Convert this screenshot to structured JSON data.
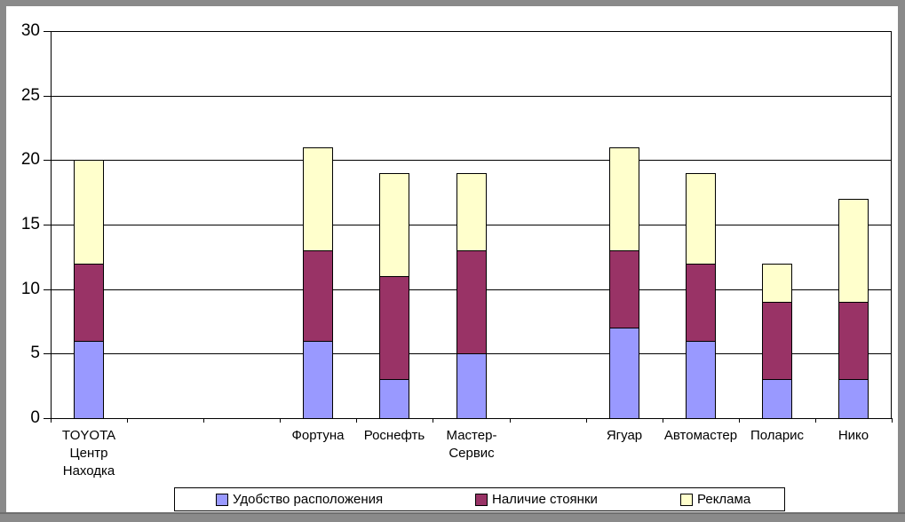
{
  "chart_data": {
    "type": "bar",
    "stacked": true,
    "title": "",
    "xlabel": "",
    "ylabel": "",
    "ylim": [
      0,
      30
    ],
    "yticks": [
      0,
      5,
      10,
      15,
      20,
      25,
      30
    ],
    "grid": true,
    "legend_position": "bottom",
    "total_slots": 11,
    "category_slots": [
      0,
      3,
      4,
      5,
      7,
      8,
      9,
      10
    ],
    "categories": [
      "TOYOTA Центр Находка",
      "Фортуна",
      "Роснефть",
      "Мастер-Сервис",
      "Ягуар",
      "Автомастер",
      "Поларис",
      "Нико"
    ],
    "category_label_lines": [
      [
        "TOYOTA",
        "Центр",
        "Находка"
      ],
      [
        "Фортуна"
      ],
      [
        "Роснефть"
      ],
      [
        "Мастер-",
        "Сервис"
      ],
      [
        "Ягуар"
      ],
      [
        "Автомастер"
      ],
      [
        "Поларис"
      ],
      [
        "Нико"
      ]
    ],
    "series": [
      {
        "name": "Удобство расположения",
        "color": "#9999FF",
        "values": [
          6,
          6,
          3,
          5,
          7,
          6,
          3,
          3
        ]
      },
      {
        "name": "Наличие стоянки",
        "color": "#993366",
        "values": [
          6,
          7,
          8,
          8,
          6,
          6,
          6,
          6
        ]
      },
      {
        "name": "Реклама",
        "color": "#FFFFCC",
        "values": [
          8,
          8,
          8,
          6,
          8,
          7,
          3,
          8
        ]
      }
    ]
  },
  "colors": {
    "frame": "#8a8a8a",
    "axis": "#000000",
    "text": "#000000",
    "background": "#ffffff"
  }
}
